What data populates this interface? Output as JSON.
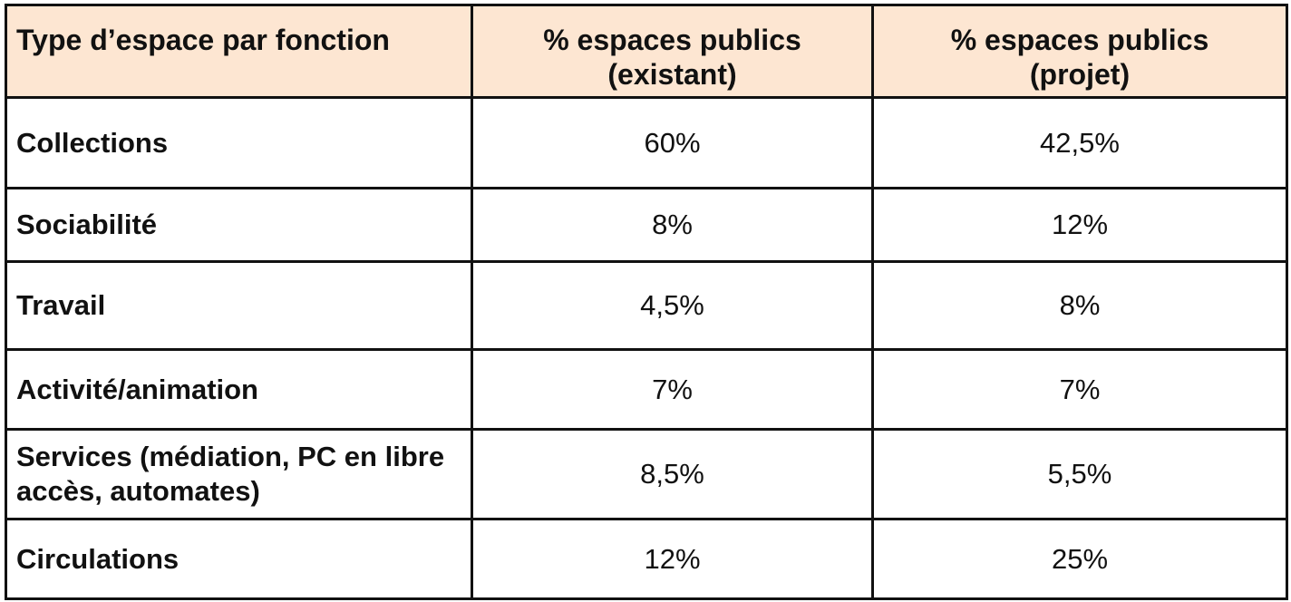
{
  "table": {
    "headers": [
      "Type d’espace par fonction",
      "% espaces publics\n(existant)",
      "% espaces publics\n(projet)"
    ],
    "header_lines": [
      [
        "Type d’espace par fonction"
      ],
      [
        "% espaces publics",
        "(existant)"
      ],
      [
        "% espaces publics",
        "(projet)"
      ]
    ],
    "rows": [
      {
        "type": "Collections",
        "existant": "60%",
        "projet": "42,5%"
      },
      {
        "type": "Sociabilité",
        "existant": "8%",
        "projet": "12%"
      },
      {
        "type": "Travail",
        "existant": "4,5%",
        "projet": "8%"
      },
      {
        "type": "Activité/animation",
        "existant": "7%",
        "projet": "7%"
      },
      {
        "type": "Services (médiation, PC en libre accès, automates)",
        "existant": "8,5%",
        "projet": "5,5%"
      },
      {
        "type": "Circulations",
        "existant": "12%",
        "projet": "25%"
      }
    ]
  },
  "colors": {
    "header_background": "#fde6d2",
    "border": "#111111",
    "text": "#111111"
  }
}
